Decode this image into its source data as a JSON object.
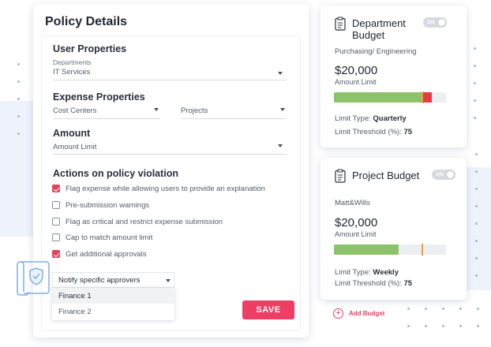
{
  "policy": {
    "title": "Policy Details",
    "user_properties": {
      "title": "User Properties",
      "departments_label": "Departments",
      "departments_value": "IT Services"
    },
    "expense_properties": {
      "title": "Expense Properties",
      "cost_centers_placeholder": "Cost Centers",
      "projects_placeholder": "Projects"
    },
    "amount": {
      "title": "Amount",
      "placeholder": "Amount Limit"
    },
    "actions": {
      "title": "Actions on policy violation",
      "options": [
        {
          "label": "Flag expense while allowing users to provide an explanation",
          "checked": true
        },
        {
          "label": "Pre-submission warnings",
          "checked": false
        },
        {
          "label": "Flag as critical and restrict expense submission",
          "checked": false
        },
        {
          "label": "Cap to match amount limit",
          "checked": false
        },
        {
          "label": "Get additional approvals",
          "checked": true
        }
      ]
    },
    "notify": {
      "selected": "Notify specific approvers",
      "options": [
        "Finance 1",
        "Finance 2"
      ],
      "highlighted": "Finance 1"
    },
    "save_label": "SAVE"
  },
  "department_budget": {
    "title_line1": "Department",
    "title_line2": "Budget",
    "toggle_label": "ON",
    "scope": "Purchasing/ Engineering",
    "amount": "$20,000",
    "amount_label": "Amount Limit",
    "usage_fraction": 0.78,
    "overage_fraction": 0.09,
    "threshold_fraction": 0.78,
    "limit_type_label": "Limit Type:",
    "limit_type": "Quarterly",
    "threshold_label": "Limit Threshold (%):",
    "threshold": "75"
  },
  "project_budget": {
    "title": "Project Budget",
    "toggle_label": "ON",
    "scope": "Matt&Wills",
    "amount": "$20,000",
    "amount_label": "Amount Limit",
    "usage_fraction": 0.58,
    "threshold_fraction": 0.78,
    "limit_type_label": "Limit Type:",
    "limit_type": "Weekly",
    "threshold_label": "Limit Threshold (%):",
    "threshold": "75"
  },
  "add_budget_label": "Add Budget",
  "colors": {
    "accent": "#ee3e64",
    "bar_green": "#8cc36a",
    "bar_red": "#e23a47",
    "threshold_marker": "#f3a328"
  }
}
